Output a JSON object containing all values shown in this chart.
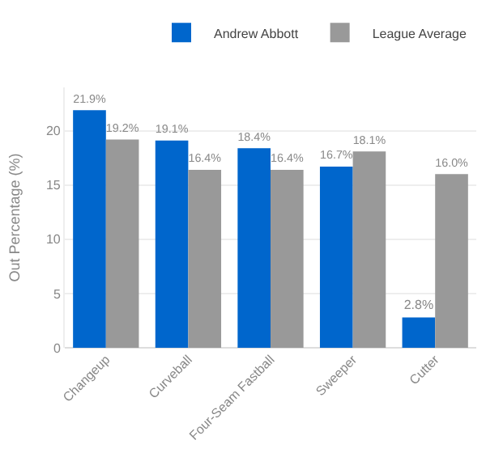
{
  "chart_data": {
    "type": "bar",
    "ylabel": "Out Percentage (%)",
    "categories": [
      "Changeup",
      "Curveball",
      "Four-Seam Fastball",
      "Sweeper",
      "Cutter"
    ],
    "series": [
      {
        "name": "Andrew Abbott",
        "color": "#0066cc",
        "values": [
          21.9,
          19.1,
          18.4,
          16.7,
          2.8
        ],
        "value_labels": [
          "21.9%",
          "19.1%",
          "18.4%",
          "16.7%",
          "2.8%"
        ]
      },
      {
        "name": "League Average",
        "color": "#999999",
        "values": [
          19.2,
          16.4,
          16.4,
          18.1,
          16.0
        ],
        "value_labels": [
          "19.2%",
          "16.4%",
          "16.4%",
          "18.1%",
          "16.0%"
        ]
      }
    ],
    "ylim": [
      0,
      24
    ],
    "yticks": [
      0,
      5,
      10,
      15,
      20
    ],
    "grid": "y",
    "legend": "top right"
  }
}
